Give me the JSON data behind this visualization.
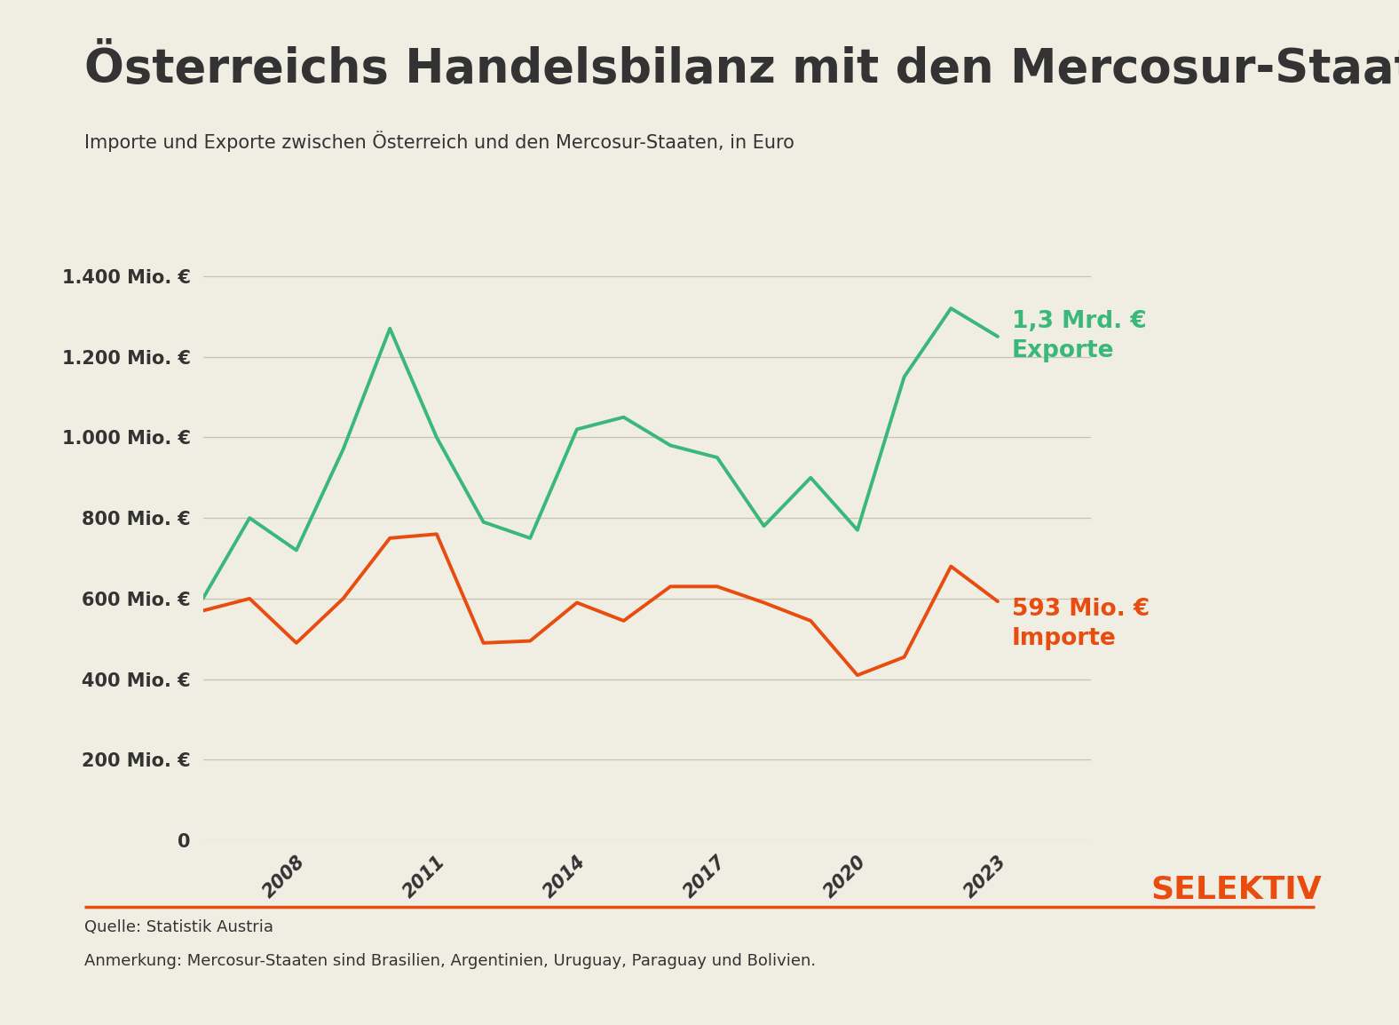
{
  "title": "Österreichs Handelsbilanz mit den Mercosur-Staaten",
  "subtitle": "Importe und Exporte zwischen Österreich und den Mercosur-Staaten, in Euro",
  "background_color": "#f0ede3",
  "export_color": "#3ab87a",
  "import_color": "#e84c0e",
  "grid_color": "#c8c3b0",
  "years": [
    2006,
    2007,
    2008,
    2009,
    2010,
    2011,
    2012,
    2013,
    2014,
    2015,
    2016,
    2017,
    2018,
    2019,
    2020,
    2021,
    2022,
    2023
  ],
  "exports": [
    600,
    800,
    720,
    970,
    1270,
    1000,
    790,
    750,
    1020,
    1050,
    980,
    950,
    780,
    900,
    770,
    1150,
    1320,
    1250
  ],
  "imports": [
    570,
    600,
    490,
    600,
    750,
    760,
    490,
    495,
    590,
    545,
    630,
    630,
    590,
    545,
    410,
    455,
    680,
    593
  ],
  "yticks": [
    0,
    200,
    400,
    600,
    800,
    1000,
    1200,
    1400
  ],
  "ytick_labels": [
    "0",
    "200 Mio. €",
    "400 Mio. €",
    "600 Mio. €",
    "800 Mio. €",
    "1.000 Mio. €",
    "1.200 Mio. €",
    "1.400 Mio. €"
  ],
  "xticks": [
    2008,
    2011,
    2014,
    2017,
    2020,
    2023
  ],
  "ylim": [
    0,
    1500
  ],
  "xlim_min": 2006,
  "xlim_max": 2025,
  "export_label": "1,3 Mrd. €\nExporte",
  "import_label": "593 Mio. €\nImporte",
  "source_text": "Quelle: Statistik Austria",
  "note_text": "Anmerkung: Mercosur-Staaten sind Brasilien, Argentinien, Uruguay, Paraguay und Bolivien.",
  "brand_text": "SELEKTIV",
  "title_fontsize": 38,
  "subtitle_fontsize": 15,
  "tick_fontsize": 15,
  "label_fontsize": 19,
  "brand_fontsize": 26,
  "source_fontsize": 13,
  "text_color": "#333333",
  "brand_color": "#e84c0e",
  "line_width": 2.8
}
